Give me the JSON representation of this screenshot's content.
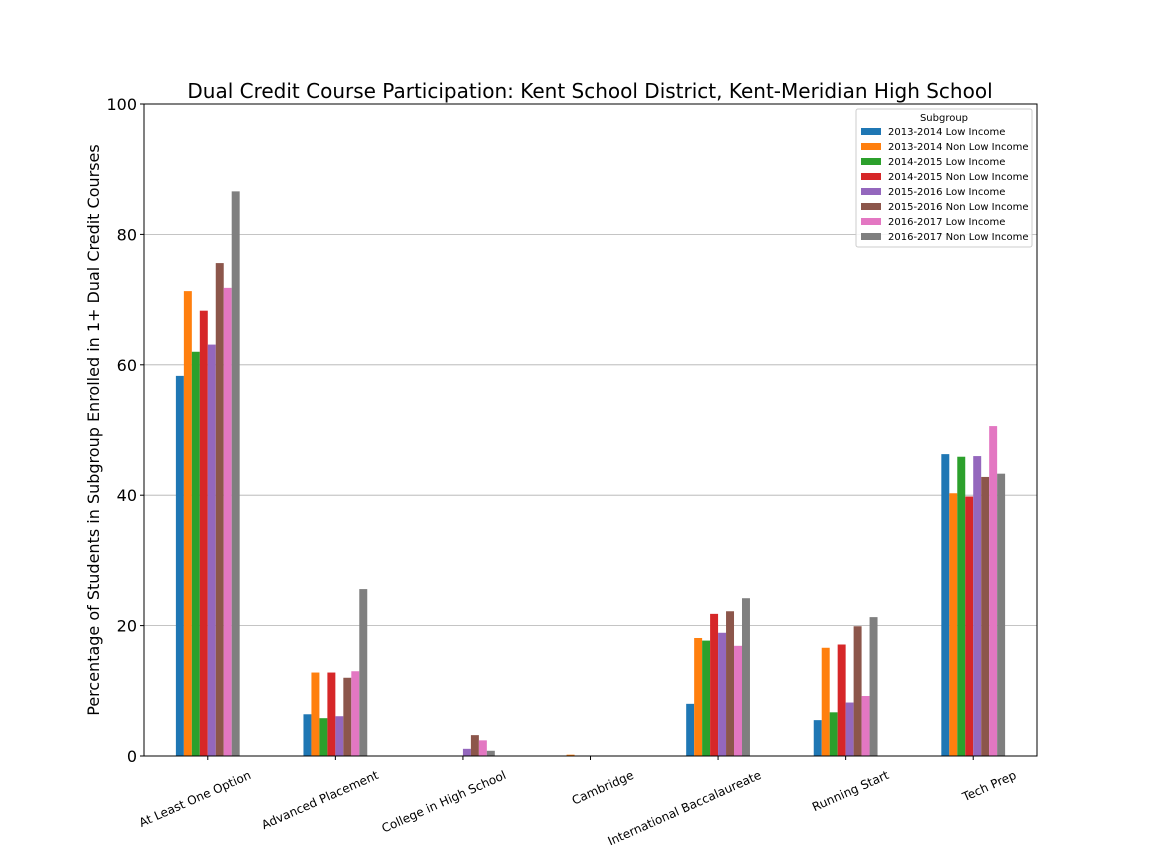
{
  "chart_data": {
    "type": "bar",
    "title": "Dual Credit Course Participation: Kent School District, Kent-Meridian High School",
    "xlabel": "",
    "ylabel": "Percentage of Students in Subgroup Enrolled in 1+ Dual Credit Courses",
    "ylim": [
      0,
      100
    ],
    "yticks": [
      0,
      20,
      40,
      60,
      80,
      100
    ],
    "grid": "horizontal",
    "legend": {
      "title": "Subgroup",
      "position": "top-right"
    },
    "categories": [
      "At Least One Option",
      "Advanced Placement",
      "College in High School",
      "Cambridge",
      "International Baccalaureate",
      "Running Start",
      "Tech Prep"
    ],
    "series": [
      {
        "name": "2013-2014 Low Income",
        "color": "#1f77b4",
        "values": [
          58.3,
          6.4,
          0,
          0,
          8.0,
          5.5,
          46.3
        ]
      },
      {
        "name": "2013-2014 Non Low Income",
        "color": "#ff7f0e",
        "values": [
          71.3,
          12.8,
          0,
          0.2,
          18.1,
          16.6,
          40.3
        ]
      },
      {
        "name": "2014-2015 Low Income",
        "color": "#2ca02c",
        "values": [
          62.0,
          5.8,
          0,
          0,
          17.7,
          6.7,
          45.9
        ]
      },
      {
        "name": "2014-2015 Non Low Income",
        "color": "#d62728",
        "values": [
          68.3,
          12.8,
          0,
          0,
          21.8,
          17.1,
          39.8
        ]
      },
      {
        "name": "2015-2016 Low Income",
        "color": "#9467bd",
        "values": [
          63.1,
          6.1,
          1.1,
          0,
          18.9,
          8.2,
          46.0
        ]
      },
      {
        "name": "2015-2016 Non Low Income",
        "color": "#8c564b",
        "values": [
          75.6,
          12.0,
          3.2,
          0,
          22.2,
          19.9,
          42.8
        ]
      },
      {
        "name": "2016-2017 Low Income",
        "color": "#e377c2",
        "values": [
          71.8,
          13.0,
          2.4,
          0,
          16.9,
          9.2,
          50.6
        ]
      },
      {
        "name": "2016-2017 Non Low Income",
        "color": "#7f7f7f",
        "values": [
          86.6,
          25.6,
          0.8,
          0,
          24.2,
          21.3,
          43.3
        ]
      }
    ]
  }
}
